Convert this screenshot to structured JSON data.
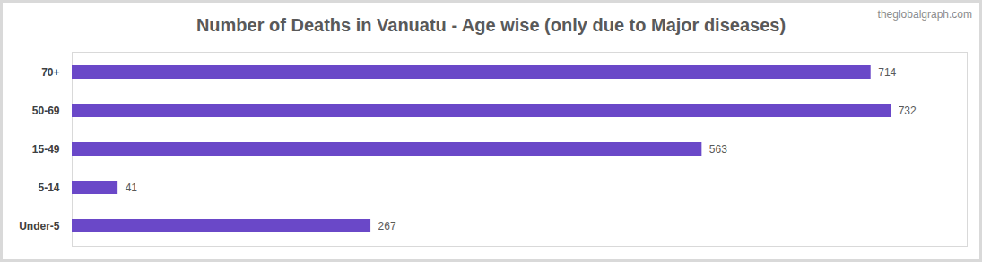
{
  "chart_data": {
    "type": "bar",
    "title": "Number of Deaths in Vanuatu - Age wise (only due to Major diseases)",
    "annotations": [
      "theglobalgraph.com"
    ],
    "categories": [
      "70+",
      "50-69",
      "15-49",
      "5-14",
      "Under-5"
    ],
    "values": [
      714,
      732,
      563,
      41,
      267
    ],
    "color": "#6a48c8",
    "orientation": "horizontal",
    "xlim": [
      0,
      800
    ],
    "grid": false,
    "data_labels": true,
    "tick_labels": "y"
  }
}
